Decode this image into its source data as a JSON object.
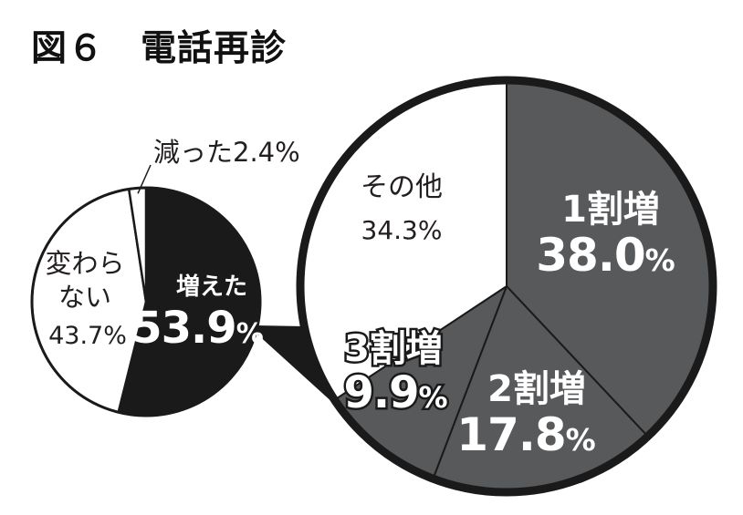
{
  "figure": {
    "title": "図６　電話再診"
  },
  "colors": {
    "black": "#1a1a1a",
    "dark_gray": "#58595b",
    "white": "#ffffff",
    "outline": "#1a1a1a"
  },
  "chart_data": [
    {
      "type": "pie",
      "title": "図６　電話再診",
      "slices": [
        {
          "label": "増えた",
          "value": 53.9,
          "value_text": "53.9%",
          "color": "#1a1a1a"
        },
        {
          "label": "変わらない",
          "value": 43.7,
          "value_text": "43.7%",
          "color": "#ffffff"
        },
        {
          "label": "減った",
          "value": 2.4,
          "value_text": "2.4%",
          "color": "#ffffff"
        }
      ],
      "legend": "none",
      "annotations": [
        {
          "text": "変わら"
        },
        {
          "text": "ない"
        },
        {
          "text": "減った2.4%"
        }
      ]
    },
    {
      "type": "pie",
      "detail_of": "増えた",
      "slices": [
        {
          "label": "1割増",
          "value": 38.0,
          "value_text": "38.0%",
          "color": "#58595b"
        },
        {
          "label": "2割増",
          "value": 17.8,
          "value_text": "17.8%",
          "color": "#58595b"
        },
        {
          "label": "3割増",
          "value": 9.9,
          "value_text": "9.9%",
          "color": "#58595b"
        },
        {
          "label": "その他",
          "value": 34.3,
          "value_text": "34.3%",
          "color": "#ffffff"
        }
      ],
      "legend": "none"
    }
  ]
}
